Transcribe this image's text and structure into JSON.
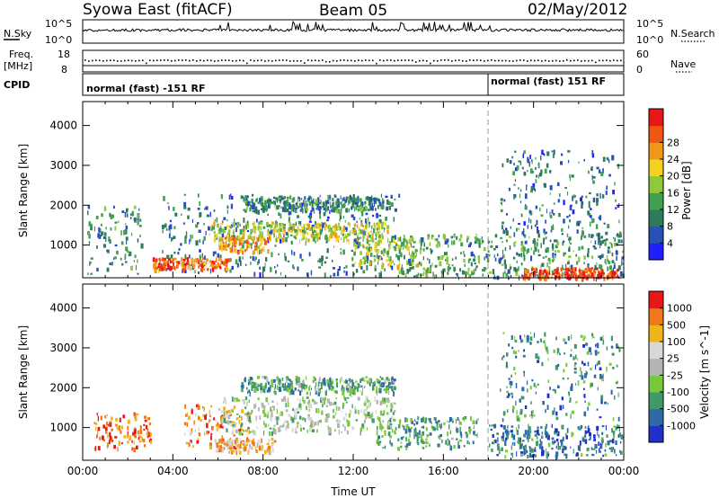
{
  "header": {
    "station": "Syowa East (fitACF)",
    "beam": "Beam 05",
    "date": "02/May/2012"
  },
  "top_strip": {
    "left_label": "N.Sky",
    "left_ticks": [
      "10^5",
      "10^0"
    ],
    "right_label": "N.Search",
    "right_ticks": [
      "10^5",
      "10^0"
    ]
  },
  "freq_strip": {
    "left_label_1": "Freq.",
    "left_label_2": "[MHz]",
    "left_ticks": [
      "18",
      "8"
    ],
    "right_label": "Nave",
    "right_ticks": [
      "60",
      "0"
    ]
  },
  "cpid": {
    "label": "CPID",
    "segments": [
      {
        "start_hour": 0,
        "end_hour": 18,
        "text": "normal (fast) -151 RF"
      },
      {
        "start_hour": 18,
        "end_hour": 24,
        "text": "normal (fast) 151 RF"
      }
    ]
  },
  "chart_data": [
    {
      "type": "heatmap",
      "ylabel": "Slant Range [km]",
      "xlabel": "",
      "yticks": [
        1000,
        2000,
        3000,
        4000
      ],
      "ylim": [
        180,
        4600
      ],
      "xlim": [
        0,
        24
      ],
      "colorbar": {
        "label": "Power [dB]",
        "ticks": [
          4,
          8,
          12,
          16,
          20,
          24,
          28
        ],
        "colors": [
          "#1f1fff",
          "#2750b8",
          "#2f7a5a",
          "#3fa050",
          "#8ec83c",
          "#f2d21e",
          "#f29818",
          "#ef5810",
          "#e81818"
        ]
      },
      "regions": [
        {
          "t0": 0.2,
          "t1": 2.6,
          "r0": 300,
          "r1": 2000,
          "level": 0.3
        },
        {
          "t0": 3.5,
          "t1": 14.0,
          "r0": 300,
          "r1": 2300,
          "level": 0.25
        },
        {
          "t0": 5.6,
          "t1": 13.5,
          "r0": 1150,
          "r1": 1600,
          "level": 0.55
        },
        {
          "t0": 6.0,
          "t1": 8.2,
          "r0": 850,
          "r1": 1250,
          "level": 0.7
        },
        {
          "t0": 3.0,
          "t1": 6.5,
          "r0": 400,
          "r1": 700,
          "level": 0.8
        },
        {
          "t0": 7.0,
          "t1": 13.5,
          "r0": 1900,
          "r1": 2250,
          "level": 0.3
        },
        {
          "t0": 12.0,
          "t1": 15.0,
          "r0": 500,
          "r1": 1200,
          "level": 0.55
        },
        {
          "t0": 14.0,
          "t1": 24.0,
          "r0": 200,
          "r1": 1300,
          "level": 0.35
        },
        {
          "t0": 19.5,
          "t1": 23.8,
          "r0": 200,
          "r1": 450,
          "level": 0.9
        },
        {
          "t0": 18.5,
          "t1": 23.8,
          "r0": 1200,
          "r1": 3400,
          "level": 0.25
        }
      ]
    },
    {
      "type": "heatmap",
      "ylabel": "Slant Range [km]",
      "xlabel": "Time UT",
      "yticks": [
        1000,
        2000,
        3000,
        4000
      ],
      "xticks": [
        "00:00",
        "04:00",
        "08:00",
        "12:00",
        "16:00",
        "20:00",
        "00:00"
      ],
      "ylim": [
        180,
        4600
      ],
      "xlim": [
        0,
        24
      ],
      "colorbar": {
        "label": "Velocity [m s^-1]",
        "ticks": [
          "1000",
          "500",
          "100",
          "25",
          "-25",
          "-100",
          "-500",
          "-1000"
        ],
        "colors": [
          "#2030c8",
          "#2f6aa8",
          "#3f9a68",
          "#78c83c",
          "#b4b4b4",
          "#d8d8d8",
          "#f0b418",
          "#f07818",
          "#e81818"
        ]
      },
      "regions": [
        {
          "t0": 0.5,
          "t1": 3.0,
          "r0": 500,
          "r1": 1400,
          "level": 0.85
        },
        {
          "t0": 4.5,
          "t1": 7.5,
          "r0": 500,
          "r1": 1600,
          "level": 0.8
        },
        {
          "t0": 5.8,
          "t1": 8.5,
          "r0": 400,
          "r1": 750,
          "level": 0.7
        },
        {
          "t0": 6.0,
          "t1": 13.8,
          "r0": 900,
          "r1": 1800,
          "level": 0.45
        },
        {
          "t0": 7.0,
          "t1": 13.8,
          "r0": 1900,
          "r1": 2300,
          "level": 0.3
        },
        {
          "t0": 13.0,
          "t1": 17.5,
          "r0": 500,
          "r1": 1300,
          "level": 0.3
        },
        {
          "t0": 18.0,
          "t1": 24.0,
          "r0": 300,
          "r1": 1100,
          "level": 0.2
        },
        {
          "t0": 18.5,
          "t1": 23.8,
          "r0": 1200,
          "r1": 3400,
          "level": 0.25
        }
      ]
    }
  ]
}
